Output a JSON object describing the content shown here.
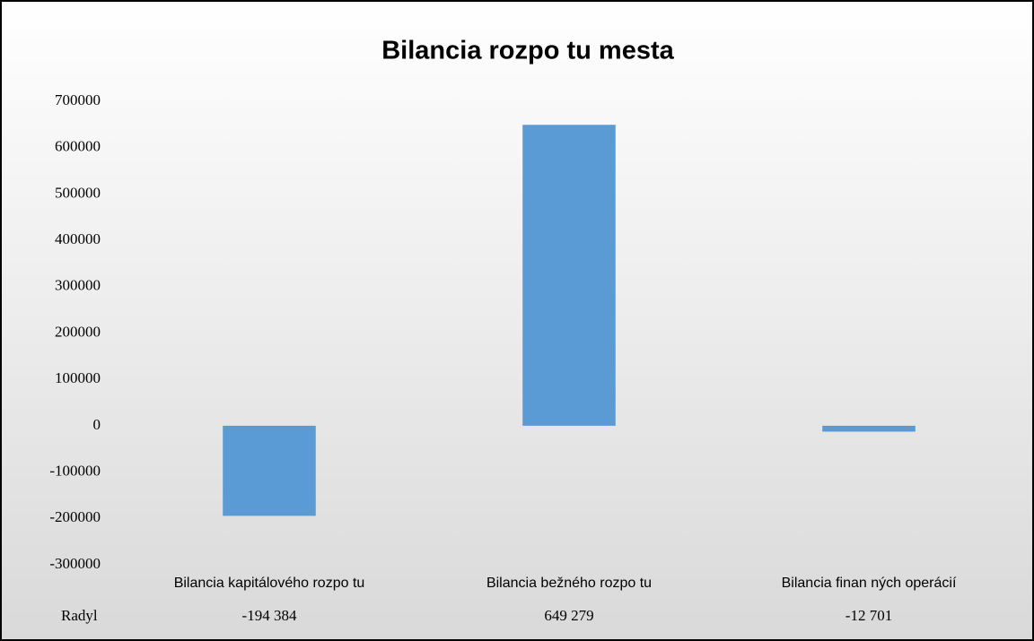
{
  "chart_data": {
    "type": "bar",
    "title": "Bilancia rozpo tu mesta",
    "categories": [
      "Bilancia kapitálového rozpo tu",
      "Bilancia bežného rozpo tu",
      "Bilancia finan ných operácií"
    ],
    "series": [
      {
        "name": "Radyl",
        "color": "#5b9bd5",
        "values": [
          -194384,
          649279,
          -12701
        ],
        "value_labels": [
          "-194 384",
          "649 279",
          "-12 701"
        ]
      }
    ],
    "ylim": [
      -300000,
      700000
    ],
    "yticks": [
      -300000,
      -200000,
      -100000,
      0,
      100000,
      200000,
      300000,
      400000,
      500000,
      600000,
      700000
    ],
    "grid": false
  }
}
